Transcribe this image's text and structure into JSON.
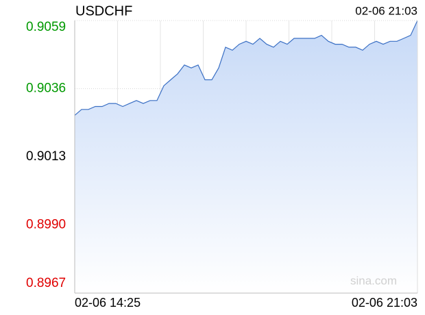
{
  "chart_data": {
    "type": "line",
    "title": "USDCHF",
    "timestamp": "02-06 21:03",
    "watermark": "sina.com",
    "categories": [
      "02-06 14:25",
      null,
      null,
      null,
      null,
      null,
      null,
      null,
      null,
      null,
      null,
      null,
      null,
      null,
      null,
      null,
      null,
      null,
      null,
      null,
      null,
      null,
      null,
      null,
      null,
      null,
      null,
      null,
      null,
      null,
      null,
      null,
      null,
      null,
      null,
      null,
      null,
      null,
      null,
      null,
      null,
      null,
      null,
      null,
      null,
      null,
      null,
      null,
      null,
      null,
      "02-06 21:03"
    ],
    "series": [
      {
        "name": "USDCHF",
        "color": "#3a6fc4",
        "values": [
          0.9027,
          0.9029,
          0.9029,
          0.903,
          0.903,
          0.9031,
          0.9031,
          0.903,
          0.9031,
          0.9032,
          0.9031,
          0.9032,
          0.9032,
          0.9037,
          0.9039,
          0.9041,
          0.9044,
          0.9043,
          0.9044,
          0.9039,
          0.9039,
          0.9043,
          0.905,
          0.9049,
          0.9051,
          0.9052,
          0.9051,
          0.9053,
          0.9051,
          0.905,
          0.9052,
          0.9051,
          0.9053,
          0.9053,
          0.9053,
          0.9053,
          0.9054,
          0.9052,
          0.9051,
          0.9051,
          0.905,
          0.905,
          0.9049,
          0.9051,
          0.9052,
          0.9051,
          0.9052,
          0.9052,
          0.9053,
          0.9054,
          0.9059
        ]
      }
    ],
    "ylim": [
      0.8967,
      0.9059
    ],
    "yticks": [
      {
        "value": 0.8967,
        "label": "0.8967"
      },
      {
        "value": 0.899,
        "label": "0.8990"
      },
      {
        "value": 0.9013,
        "label": "0.9013"
      },
      {
        "value": 0.9036,
        "label": "0.9036"
      },
      {
        "value": 0.9059,
        "label": "0.9059"
      }
    ],
    "baseline": 0.9013,
    "up_color": "#009900",
    "down_color": "#e00000",
    "flat_color": "#000000",
    "grid": true
  }
}
